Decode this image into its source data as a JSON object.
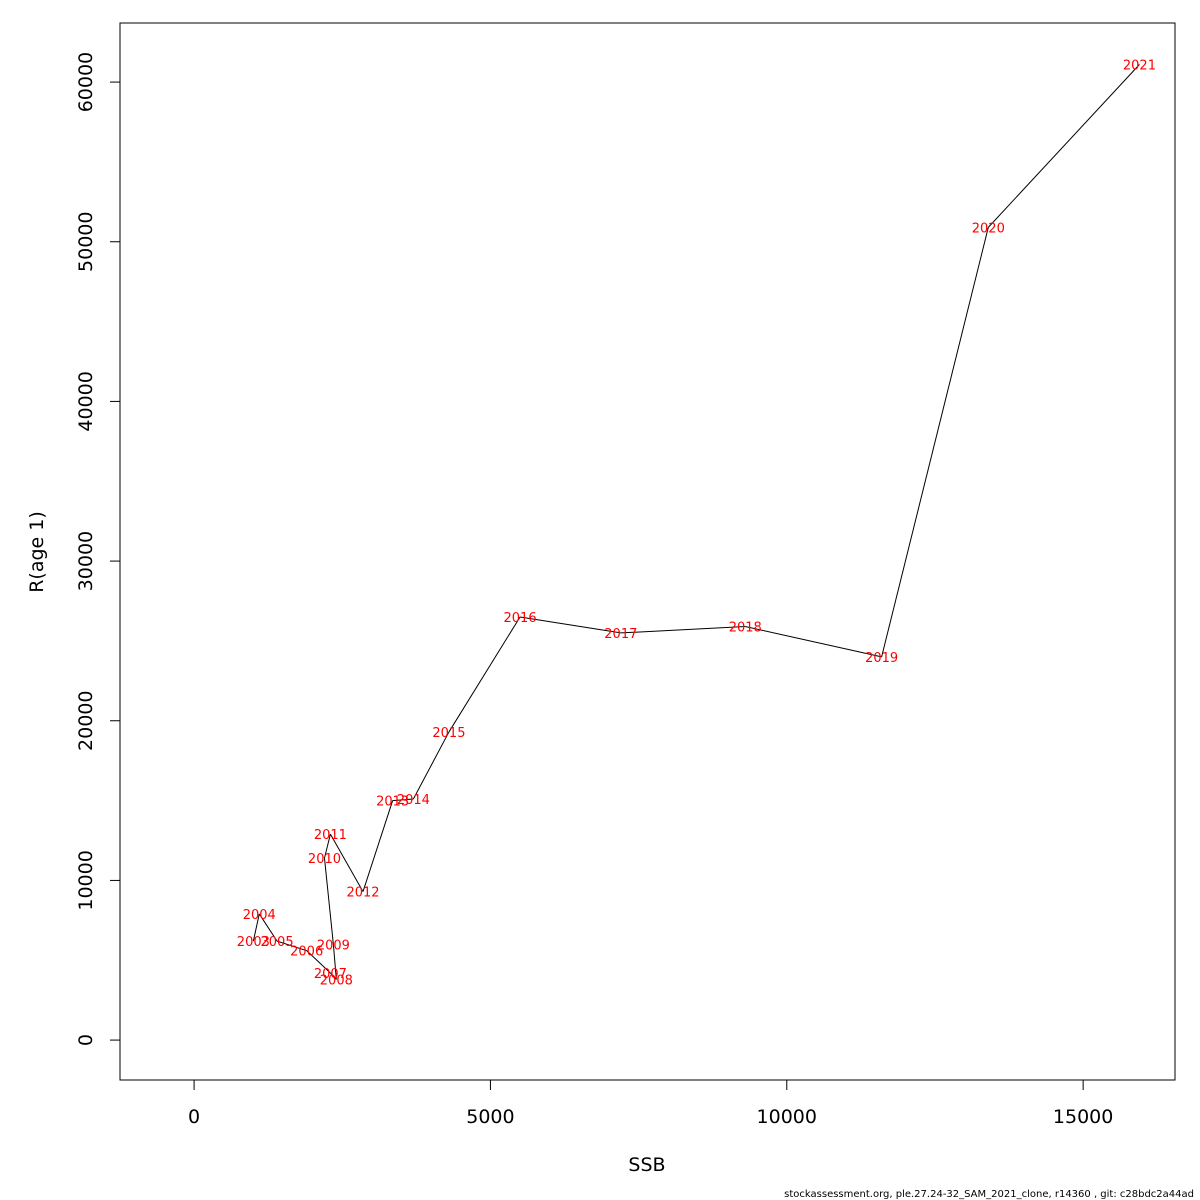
{
  "chart_data": {
    "type": "line",
    "xlabel": "SSB",
    "ylabel": "R(age 1)",
    "xlim": [
      -1250,
      16550
    ],
    "ylim": [
      -2500,
      63700
    ],
    "xticks": [
      0,
      5000,
      10000,
      15000
    ],
    "yticks": [
      0,
      10000,
      20000,
      30000,
      40000,
      50000,
      60000
    ],
    "grid": false,
    "line_color": "#000000",
    "label_color": "#ff0000",
    "points": [
      {
        "label": "2003",
        "x": 1000,
        "y": 6200
      },
      {
        "label": "2004",
        "x": 1100,
        "y": 7900
      },
      {
        "label": "2005",
        "x": 1400,
        "y": 6200
      },
      {
        "label": "2006",
        "x": 1900,
        "y": 5600
      },
      {
        "label": "2007",
        "x": 2300,
        "y": 4200
      },
      {
        "label": "2008",
        "x": 2400,
        "y": 3800
      },
      {
        "label": "2009",
        "x": 2350,
        "y": 6000
      },
      {
        "label": "2010",
        "x": 2200,
        "y": 11400
      },
      {
        "label": "2011",
        "x": 2300,
        "y": 12900
      },
      {
        "label": "2012",
        "x": 2850,
        "y": 9300
      },
      {
        "label": "2013",
        "x": 3350,
        "y": 15000
      },
      {
        "label": "2014",
        "x": 3700,
        "y": 15100
      },
      {
        "label": "2015",
        "x": 4300,
        "y": 19300
      },
      {
        "label": "2016",
        "x": 5500,
        "y": 26500
      },
      {
        "label": "2017",
        "x": 7200,
        "y": 25500
      },
      {
        "label": "2018",
        "x": 9300,
        "y": 25900
      },
      {
        "label": "2019",
        "x": 11600,
        "y": 24000
      },
      {
        "label": "2020",
        "x": 13400,
        "y": 50900
      },
      {
        "label": "2021",
        "x": 15950,
        "y": 61100
      }
    ]
  },
  "footer_text": "stockassessment.org, ple.27.24-32_SAM_2021_clone, r14360 , git: c28bdc2a44ad"
}
